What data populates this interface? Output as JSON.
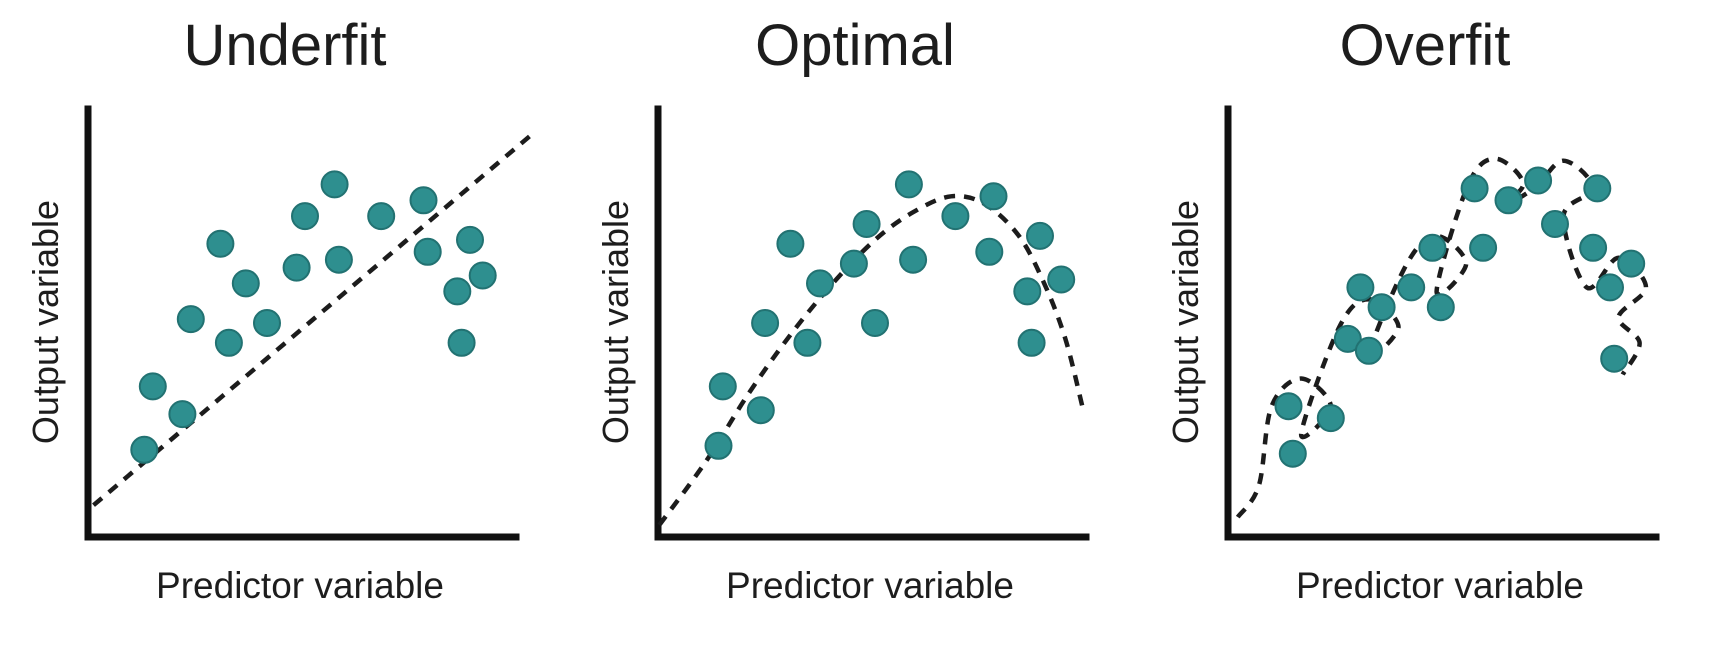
{
  "figure": {
    "background": "#ffffff",
    "text_color": "#1d1d1d"
  },
  "chart_data": [
    {
      "type": "scatter",
      "title": "Underfit",
      "xlabel": "Predictor variable",
      "ylabel": "Output variable",
      "fit_type": "linear-dashed",
      "legend": "none",
      "grid": false,
      "xlim": [
        0,
        1
      ],
      "ylim": [
        0,
        1
      ],
      "dot_color": "#2e8f8f",
      "dot_outline": "#227272",
      "curve_color": "#1c1c1c",
      "axis_color": "#111111",
      "points": [
        [
          0.12,
          0.35
        ],
        [
          0.1,
          0.19
        ],
        [
          0.19,
          0.28
        ],
        [
          0.21,
          0.52
        ],
        [
          0.3,
          0.46
        ],
        [
          0.34,
          0.61
        ],
        [
          0.28,
          0.71
        ],
        [
          0.39,
          0.51
        ],
        [
          0.48,
          0.78
        ],
        [
          0.46,
          0.65
        ],
        [
          0.55,
          0.86
        ],
        [
          0.56,
          0.67
        ],
        [
          0.66,
          0.78
        ],
        [
          0.76,
          0.82
        ],
        [
          0.77,
          0.69
        ],
        [
          0.87,
          0.72
        ],
        [
          0.84,
          0.59
        ],
        [
          0.85,
          0.46
        ],
        [
          0.9,
          0.63
        ]
      ],
      "curve": [
        [
          -0.02,
          0.05
        ],
        [
          1.02,
          0.99
        ]
      ]
    },
    {
      "type": "scatter",
      "title": "Optimal",
      "xlabel": "Predictor variable",
      "ylabel": "Output variable",
      "fit_type": "smooth-dashed",
      "legend": "none",
      "grid": false,
      "xlim": [
        0,
        1
      ],
      "ylim": [
        0,
        1
      ],
      "dot_color": "#2e8f8f",
      "dot_outline": "#227272",
      "curve_color": "#1c1c1c",
      "axis_color": "#111111",
      "points": [
        [
          0.11,
          0.2
        ],
        [
          0.12,
          0.35
        ],
        [
          0.21,
          0.29
        ],
        [
          0.22,
          0.51
        ],
        [
          0.32,
          0.46
        ],
        [
          0.28,
          0.71
        ],
        [
          0.35,
          0.61
        ],
        [
          0.43,
          0.66
        ],
        [
          0.46,
          0.76
        ],
        [
          0.48,
          0.51
        ],
        [
          0.56,
          0.86
        ],
        [
          0.57,
          0.67
        ],
        [
          0.67,
          0.78
        ],
        [
          0.76,
          0.83
        ],
        [
          0.75,
          0.69
        ],
        [
          0.87,
          0.73
        ],
        [
          0.84,
          0.59
        ],
        [
          0.85,
          0.46
        ],
        [
          0.92,
          0.62
        ]
      ],
      "curve": [
        [
          -0.03,
          0.0
        ],
        [
          0.08,
          0.16
        ],
        [
          0.18,
          0.33
        ],
        [
          0.28,
          0.48
        ],
        [
          0.38,
          0.61
        ],
        [
          0.48,
          0.72
        ],
        [
          0.57,
          0.79
        ],
        [
          0.66,
          0.83
        ],
        [
          0.74,
          0.81
        ],
        [
          0.82,
          0.73
        ],
        [
          0.88,
          0.61
        ],
        [
          0.93,
          0.47
        ],
        [
          0.97,
          0.3
        ]
      ]
    },
    {
      "type": "scatter",
      "title": "Overfit",
      "xlabel": "Predictor variable",
      "ylabel": "Output variable",
      "fit_type": "wiggly-dashed-loops",
      "legend": "none",
      "grid": false,
      "xlim": [
        0,
        1
      ],
      "ylim": [
        0,
        1
      ],
      "dot_color": "#2e8f8f",
      "dot_outline": "#227272",
      "curve_color": "#1c1c1c",
      "axis_color": "#111111",
      "points": [
        [
          0.11,
          0.3
        ],
        [
          0.12,
          0.18
        ],
        [
          0.21,
          0.27
        ],
        [
          0.25,
          0.47
        ],
        [
          0.3,
          0.44
        ],
        [
          0.28,
          0.6
        ],
        [
          0.33,
          0.55
        ],
        [
          0.4,
          0.6
        ],
        [
          0.45,
          0.7
        ],
        [
          0.47,
          0.55
        ],
        [
          0.55,
          0.85
        ],
        [
          0.57,
          0.7
        ],
        [
          0.63,
          0.82
        ],
        [
          0.7,
          0.87
        ],
        [
          0.74,
          0.76
        ],
        [
          0.84,
          0.85
        ],
        [
          0.83,
          0.7
        ],
        [
          0.87,
          0.6
        ],
        [
          0.92,
          0.66
        ],
        [
          0.88,
          0.42
        ]
      ],
      "curve": [
        [
          -0.01,
          0.02
        ],
        [
          0.04,
          0.1
        ],
        [
          0.07,
          0.3
        ],
        [
          0.14,
          0.37
        ],
        [
          0.21,
          0.3
        ],
        [
          0.14,
          0.23
        ],
        [
          0.23,
          0.5
        ],
        [
          0.3,
          0.57
        ],
        [
          0.37,
          0.5
        ],
        [
          0.3,
          0.43
        ],
        [
          0.39,
          0.66
        ],
        [
          0.46,
          0.73
        ],
        [
          0.53,
          0.66
        ],
        [
          0.46,
          0.59
        ],
        [
          0.535,
          0.86
        ],
        [
          0.6,
          0.925
        ],
        [
          0.665,
          0.86
        ],
        [
          0.6,
          0.795
        ],
        [
          0.69,
          0.85
        ],
        [
          0.76,
          0.92
        ],
        [
          0.83,
          0.85
        ],
        [
          0.76,
          0.78
        ],
        [
          0.815,
          0.6
        ],
        [
          0.89,
          0.675
        ],
        [
          0.955,
          0.6
        ],
        [
          0.89,
          0.525
        ],
        [
          0.94,
          0.46
        ],
        [
          0.9,
          0.38
        ]
      ]
    }
  ]
}
